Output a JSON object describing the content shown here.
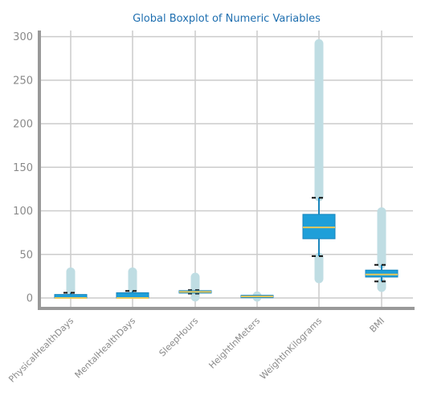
{
  "chart_data": {
    "type": "boxplot",
    "title": "Global Boxplot of Numeric Variables",
    "xlabel": "",
    "ylabel": "",
    "ylim": [
      -12,
      307
    ],
    "yticks": [
      0,
      50,
      100,
      150,
      200,
      250,
      300
    ],
    "grid": true,
    "colors": {
      "box_fill": "#1e9fd9",
      "box_edge": "#1a86bd",
      "median": "#e8c85a",
      "outlier": "#bfdde3",
      "cap": "#111111",
      "grid": "#cccccc",
      "axis": "#999999",
      "title": "#1f6fb0",
      "tick": "#8a8a8a"
    },
    "categories": [
      "PhysicalHealthDays",
      "MentalHealthDays",
      "SleepHours",
      "HeightInMeters",
      "WeightInKilograms",
      "BMI"
    ],
    "boxes": [
      {
        "name": "PhysicalHealthDays",
        "whisker_low": 0,
        "q1": 0,
        "median": 0,
        "q3": 4,
        "whisker_high": 6,
        "outliers_range": [
          7,
          30
        ]
      },
      {
        "name": "MentalHealthDays",
        "whisker_low": 0,
        "q1": 0,
        "median": 0,
        "q3": 6,
        "whisker_high": 8,
        "outliers_range": [
          9,
          30
        ]
      },
      {
        "name": "SleepHours",
        "whisker_low": 5,
        "q1": 6,
        "median": 7,
        "q3": 8,
        "whisker_high": 9,
        "outliers_range": [
          1,
          24
        ]
      },
      {
        "name": "HeightInMeters",
        "whisker_low": 1.4,
        "q1": 1.6,
        "median": 1.7,
        "q3": 1.8,
        "whisker_high": 2.0,
        "outliers_range": [
          0.9,
          2.4
        ]
      },
      {
        "name": "WeightInKilograms",
        "whisker_low": 48,
        "q1": 68,
        "median": 81,
        "q3": 96,
        "whisker_high": 115,
        "outliers_range_low": [
          22,
          47
        ],
        "outliers_range": [
          116,
          292
        ]
      },
      {
        "name": "BMI",
        "whisker_low": 19,
        "q1": 24,
        "median": 27,
        "q3": 32,
        "whisker_high": 38,
        "outliers_range_low": [
          12,
          18
        ],
        "outliers_range": [
          39,
          99
        ]
      }
    ]
  }
}
